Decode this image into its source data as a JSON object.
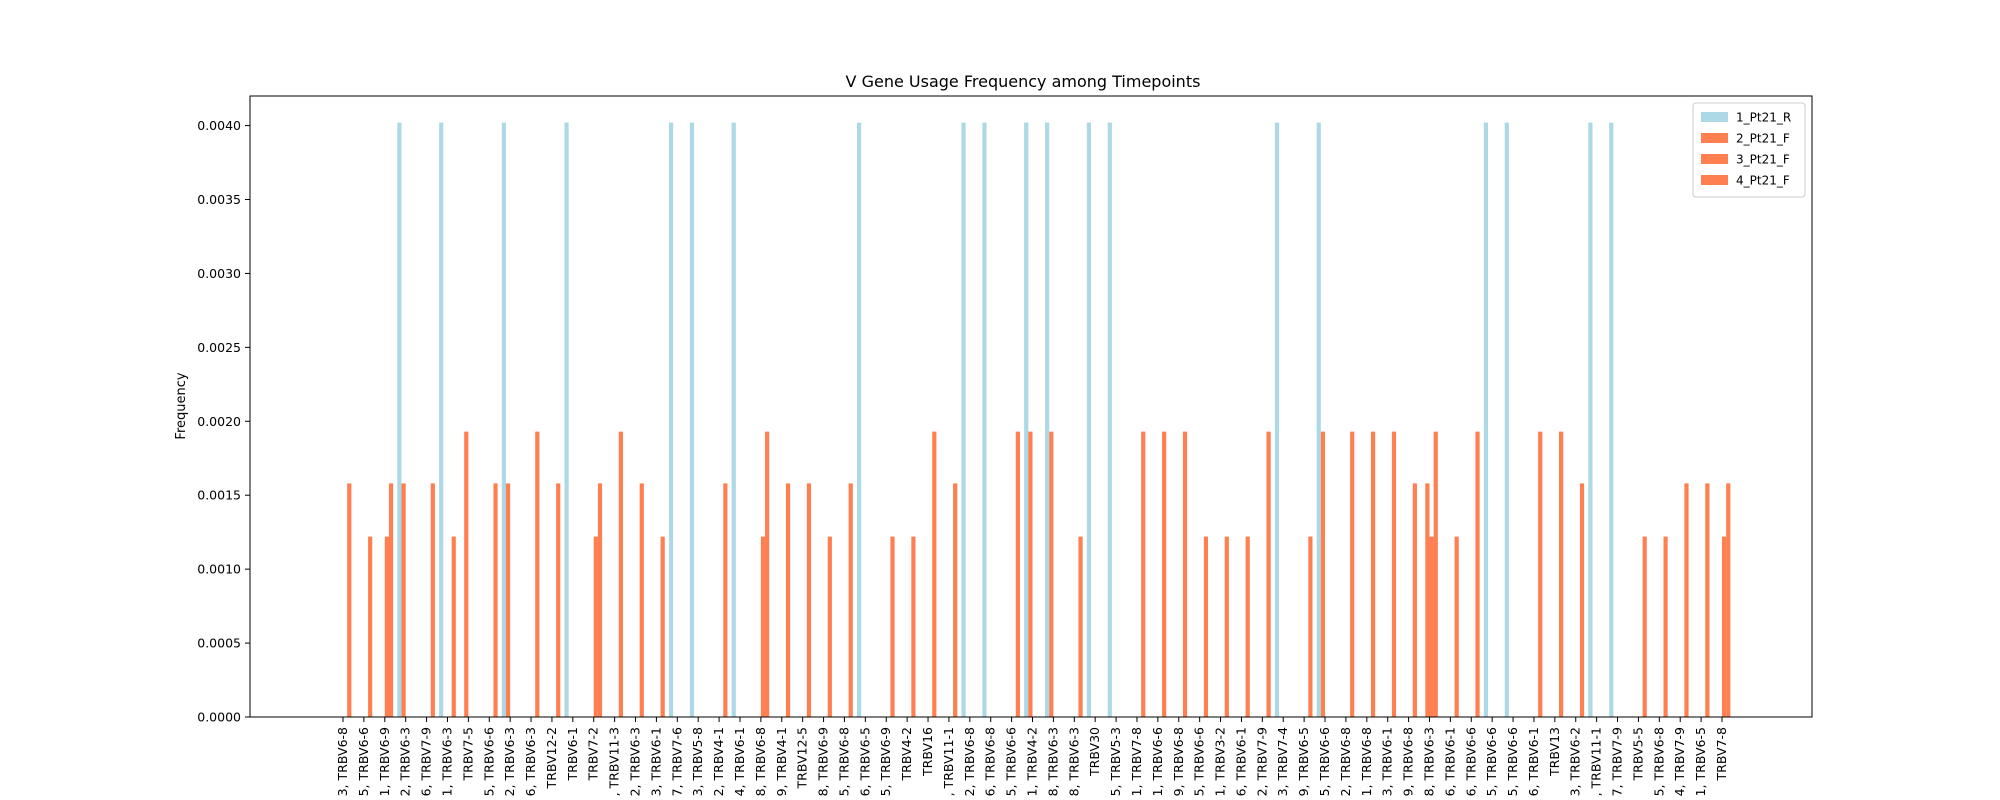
{
  "chart_data": {
    "type": "bar",
    "title": "V Gene Usage Frequency among Timepoints",
    "xlabel": "",
    "ylabel": "Frequency",
    "ylim": [
      0,
      0.0042
    ],
    "yticks": [
      "0.0000",
      "0.0005",
      "0.0010",
      "0.0015",
      "0.0020",
      "0.0025",
      "0.0030",
      "0.0035",
      "0.0040"
    ],
    "grid": false,
    "legend_position": "top-right",
    "categories": [
      "3, TRBV6-8",
      "5, TRBV6-6",
      "1, TRBV6-9",
      "2, TRBV6-3",
      "6, TRBV7-9",
      "1, TRBV6-3",
      "TRBV7-5",
      "5, TRBV6-6",
      "2, TRBV6-3",
      "6, TRBV6-3",
      "TRBV12-2",
      "TRBV6-1",
      "TRBV7-2",
      ", TRBV11-3",
      "2, TRBV6-3",
      "3, TRBV6-1",
      "7, TRBV7-6",
      "3, TRBV5-8",
      "2, TRBV4-1",
      "4, TRBV6-1",
      "8, TRBV6-8",
      "9, TRBV4-1",
      "TRBV12-5",
      "8, TRBV6-9",
      "5, TRBV6-8",
      "6, TRBV6-5",
      "5, TRBV6-9",
      "TRBV4-2",
      "TRBV16",
      ", TRBV11-1",
      "2, TRBV6-8",
      "6, TRBV6-8",
      "5, TRBV6-6",
      "1, TRBV4-2",
      "8, TRBV6-3",
      "8, TRBV6-3",
      "TRBV30",
      "5, TRBV5-3",
      "1, TRBV7-8",
      "1, TRBV6-6",
      "9, TRBV6-8",
      "5, TRBV6-6",
      "1, TRBV3-2",
      "6, TRBV6-1",
      "2, TRBV7-9",
      "3, TRBV7-4",
      "9, TRBV6-5",
      "5, TRBV6-6",
      "2, TRBV6-8",
      "1, TRBV6-8",
      "3, TRBV6-1",
      "9, TRBV6-8",
      "8, TRBV6-3",
      "6, TRBV6-1",
      "6, TRBV6-6",
      "5, TRBV6-6",
      "5, TRBV6-6",
      "6, TRBV6-1",
      "TRBV13",
      "3, TRBV6-2",
      ", TRBV11-1",
      "7, TRBV7-9",
      "TRBV5-5",
      "5, TRBV6-8",
      "4, TRBV7-9",
      "1, TRBV6-5",
      "TRBV7-8"
    ],
    "series": [
      {
        "name": "1_Pt21_R",
        "color": "#add8e6",
        "values": [
          0,
          0,
          0,
          0.00402,
          0,
          0.00402,
          0,
          0,
          0.00402,
          0,
          0,
          0.00402,
          0,
          0,
          0,
          0,
          0.00402,
          0.00402,
          0,
          0.00402,
          0,
          0,
          0,
          0,
          0,
          0.00402,
          0,
          0,
          0,
          0,
          0.00402,
          0.00402,
          0,
          0.00402,
          0.00402,
          0,
          0.00402,
          0.00402,
          0,
          0,
          0,
          0,
          0,
          0,
          0,
          0.00402,
          0,
          0.00402,
          0,
          0,
          0,
          0,
          0,
          0,
          0,
          0.00402,
          0.00402,
          0,
          0,
          0,
          0.00402,
          0.00402,
          0,
          0,
          0,
          0,
          0
        ]
      },
      {
        "name": "2_Pt21_F",
        "color": "#ff7f50",
        "values": [
          0,
          0,
          0,
          0.00158,
          0,
          0,
          0.00193,
          0,
          0.00158,
          0,
          0,
          0,
          0,
          0,
          0,
          0,
          0,
          0,
          0,
          0,
          0,
          0,
          0,
          0,
          0,
          0,
          0,
          0,
          0,
          0,
          0,
          0,
          0,
          0.00193,
          0.00193,
          0,
          0,
          0,
          0,
          0,
          0,
          0,
          0,
          0,
          0,
          0,
          0,
          0.00193,
          0,
          0,
          0,
          0,
          0.00158,
          0,
          0,
          0,
          0,
          0,
          0,
          0,
          0,
          0,
          0,
          0,
          0,
          0,
          0
        ]
      },
      {
        "name": "3_Pt21_F",
        "color": "#ff7f50",
        "values": [
          0,
          0,
          0.00122,
          0,
          0,
          0,
          0,
          0,
          0,
          0,
          0,
          0,
          0.00122,
          0,
          0,
          0,
          0,
          0,
          0,
          0,
          0.00122,
          0,
          0,
          0,
          0,
          0,
          0,
          0,
          0,
          0,
          0,
          0,
          0,
          0,
          0,
          0,
          0,
          0,
          0,
          0,
          0,
          0,
          0,
          0,
          0,
          0,
          0,
          0,
          0,
          0,
          0,
          0,
          0.00122,
          0,
          0,
          0,
          0,
          0,
          0,
          0,
          0,
          0,
          0,
          0,
          0,
          0,
          0.00122
        ]
      },
      {
        "name": "4_Pt21_F",
        "color": "#ff7f50",
        "values": [
          0.00158,
          0.00122,
          0.00158,
          0,
          0.00158,
          0.00122,
          0,
          0.00158,
          0,
          0.00193,
          0.00158,
          0,
          0.00158,
          0.00193,
          0.00158,
          0.00122,
          0,
          0,
          0.00158,
          0,
          0.00193,
          0.00158,
          0.00158,
          0.00122,
          0.00158,
          0,
          0.00122,
          0.00122,
          0.00193,
          0.00158,
          0,
          0,
          0.00193,
          0,
          0,
          0.00122,
          0,
          0,
          0.00193,
          0.00193,
          0.00193,
          0.00122,
          0.00122,
          0.00122,
          0.00193,
          0,
          0.00122,
          0,
          0.00193,
          0.00193,
          0.00193,
          0.00158,
          0.00193,
          0.00122,
          0.00193,
          0,
          0,
          0.00193,
          0.00193,
          0.00158,
          0,
          0,
          0.00122,
          0.00122,
          0.00158,
          0.00158,
          0.00158
        ]
      }
    ]
  }
}
